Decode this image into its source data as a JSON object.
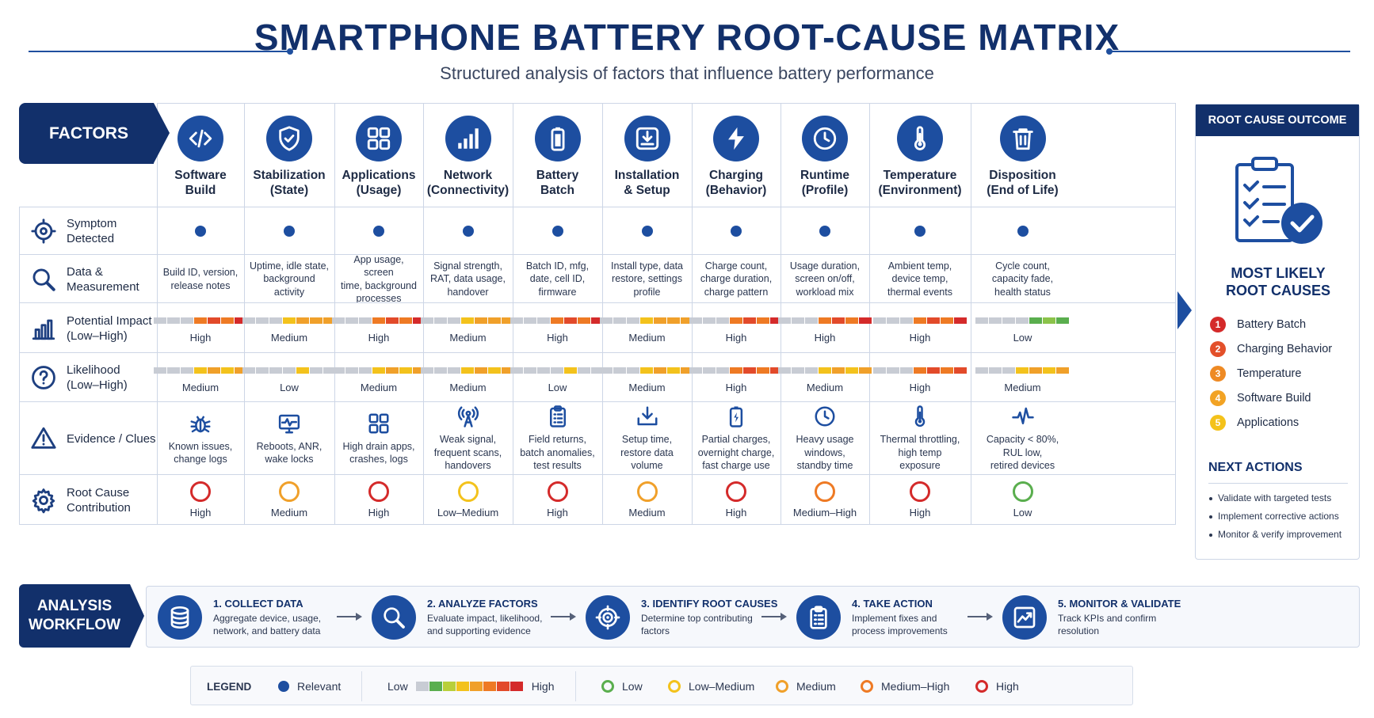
{
  "header": {
    "title": "SMARTPHONE BATTERY ROOT-CAUSE MATRIX",
    "subtitle": "Structured analysis of factors that influence battery performance"
  },
  "matrix": {
    "factors_label": "FACTORS",
    "columns": [
      {
        "icon": "code-icon",
        "label": "Software\nBuild"
      },
      {
        "icon": "shield-check-icon",
        "label": "Stabilization\n(State)"
      },
      {
        "icon": "apps-grid-icon",
        "label": "Applications\n(Usage)"
      },
      {
        "icon": "signal-bars-icon",
        "label": "Network\n(Connectivity)"
      },
      {
        "icon": "battery-icon",
        "label": "Battery\nBatch"
      },
      {
        "icon": "install-tray-icon",
        "label": "Installation\n& Setup"
      },
      {
        "icon": "lightning-icon",
        "label": "Charging\n(Behavior)"
      },
      {
        "icon": "clock-icon",
        "label": "Runtime\n(Profile)"
      },
      {
        "icon": "thermometer-icon",
        "label": "Temperature\n(Environment)"
      },
      {
        "icon": "trash-icon",
        "label": "Disposition\n(End of Life)"
      }
    ],
    "rows": {
      "symptom": {
        "label": "Symptom\nDetected",
        "icon": "crosshair-icon"
      },
      "data": {
        "label": "Data &\nMeasurement",
        "icon": "magnifier-icon",
        "values": [
          "Build ID, version,\nrelease notes",
          "Uptime, idle state,\nbackground\nactivity",
          "App usage, screen\ntime, background\nprocesses",
          "Signal strength,\nRAT, data usage,\nhandover",
          "Batch ID, mfg,\ndate, cell ID,\nfirmware",
          "Install type, data\nrestore, settings\nprofile",
          "Charge count,\ncharge duration,\ncharge pattern",
          "Usage duration,\nscreen on/off,\nworkload mix",
          "Ambient temp,\ndevice temp,\nthermal events",
          "Cycle count,\ncapacity fade,\nhealth status"
        ]
      },
      "impact": {
        "label": "Potential Impact\n(Low–High)",
        "icon": "bar-chart-icon",
        "values": [
          "High",
          "Medium",
          "High",
          "Medium",
          "High",
          "Medium",
          "High",
          "High",
          "High",
          "Low"
        ]
      },
      "likelihood": {
        "label": "Likelihood\n(Low–High)",
        "icon": "question-icon",
        "values": [
          "Medium",
          "Low",
          "Medium",
          "Medium",
          "Low",
          "Medium",
          "High",
          "Medium",
          "High",
          "Medium"
        ]
      },
      "evidence": {
        "label": "Evidence / Clues",
        "icon": "warning-icon",
        "items": [
          {
            "icon": "bug-icon",
            "text": "Known issues,\nchange logs"
          },
          {
            "icon": "monitor-pulse-icon",
            "text": "Reboots, ANR,\nwake locks"
          },
          {
            "icon": "apps-grid-icon",
            "text": "High drain apps,\ncrashes, logs"
          },
          {
            "icon": "antenna-icon",
            "text": "Weak signal,\nfrequent scans,\nhandovers"
          },
          {
            "icon": "clipboard-list-icon",
            "text": "Field returns,\nbatch anomalies,\ntest results"
          },
          {
            "icon": "download-tray-icon",
            "text": "Setup time,\nrestore data\nvolume"
          },
          {
            "icon": "battery-charge-icon",
            "text": "Partial charges,\novernight charge,\nfast charge use"
          },
          {
            "icon": "clock-icon",
            "text": "Heavy usage\nwindows,\nstandby time"
          },
          {
            "icon": "thermometer-icon",
            "text": "Thermal throttling,\nhigh temp\nexposure"
          },
          {
            "icon": "pulse-line-icon",
            "text": "Capacity < 80%,\nRUL low,\nretired devices"
          }
        ]
      },
      "contribution": {
        "label": "Root Cause\nContribution",
        "icon": "gear-icon",
        "values": [
          "High",
          "Medium",
          "High",
          "Low–Medium",
          "High",
          "Medium",
          "High",
          "Medium–High",
          "High",
          "Low"
        ]
      }
    }
  },
  "outcome": {
    "header": "ROOT CAUSE OUTCOME",
    "icon": "clipboard-check-icon",
    "most_likely": "MOST LIKELY\nROOT CAUSES",
    "causes": [
      {
        "num": "1",
        "label": "Battery Batch",
        "color": "#d42a2a"
      },
      {
        "num": "2",
        "label": "Charging Behavior",
        "color": "#e3502a"
      },
      {
        "num": "3",
        "label": "Temperature",
        "color": "#ee8a24"
      },
      {
        "num": "4",
        "label": "Software Build",
        "color": "#f2a324"
      },
      {
        "num": "5",
        "label": "Applications",
        "color": "#f4c21a"
      }
    ],
    "next_title": "NEXT ACTIONS",
    "next_actions": [
      "Validate with targeted tests",
      "Implement corrective actions",
      "Monitor & verify improvement"
    ]
  },
  "workflow": {
    "label": "ANALYSIS\nWORKFLOW",
    "steps": [
      {
        "icon": "database-icon",
        "title": "1. COLLECT DATA",
        "desc": "Aggregate device, usage,\nnetwork, and battery data"
      },
      {
        "icon": "magnifier-icon",
        "title": "2. ANALYZE FACTORS",
        "desc": "Evaluate impact, likelihood,\nand supporting evidence"
      },
      {
        "icon": "target-icon",
        "title": "3. IDENTIFY ROOT CAUSES",
        "desc": "Determine top contributing\nfactors"
      },
      {
        "icon": "clipboard-list-icon",
        "title": "4. TAKE ACTION",
        "desc": "Implement fixes and\nprocess improvements"
      },
      {
        "icon": "trend-chart-icon",
        "title": "5. MONITOR & VALIDATE",
        "desc": "Track KPIs and confirm\nresolution"
      }
    ]
  },
  "legend": {
    "title": "LEGEND",
    "relevant": "Relevant",
    "scale_low": "Low",
    "scale_high": "High",
    "rings": [
      {
        "label": "Low",
        "color": "#5aae4e"
      },
      {
        "label": "Low–Medium",
        "color": "#f3c21c"
      },
      {
        "label": "Medium",
        "color": "#f0a02a"
      },
      {
        "label": "Medium–High",
        "color": "#ee7a24"
      },
      {
        "label": "High",
        "color": "#d42a2a"
      }
    ]
  },
  "colors": {
    "navy": "#12306b",
    "blue": "#1d4ea0",
    "low": "#5aae4e",
    "low_medium": "#f3c21c",
    "medium": "#f0a02a",
    "medium_high": "#ee7a24",
    "high": "#d42a2a"
  }
}
